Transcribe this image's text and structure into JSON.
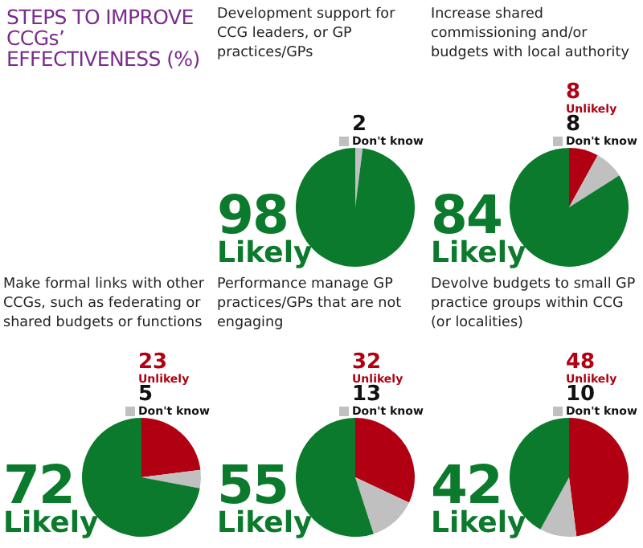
{
  "chart_data": [
    {
      "type": "other",
      "title": "STEPS TO IMPROVE CCGs’ EFFECTIVENESS (%)"
    },
    {
      "type": "pie",
      "title": "Development support for CCG leaders, or GP practices/GPs",
      "categories": [
        "Don't know",
        "Likely"
      ],
      "values": [
        2,
        98
      ],
      "colors": [
        "#c0c0c0",
        "#0b7a2c"
      ],
      "data_labels": true
    },
    {
      "type": "pie",
      "title": "Increase shared commissioning and/or budgets with local authority",
      "categories": [
        "Unlikely",
        "Don't know",
        "Likely"
      ],
      "values": [
        8,
        8,
        84
      ],
      "colors": [
        "#b00012",
        "#c0c0c0",
        "#0b7a2c"
      ],
      "data_labels": true
    },
    {
      "type": "pie",
      "title": "Make formal links with other CCGs, such as federating or shared budgets or functions",
      "categories": [
        "Unlikely",
        "Don't know",
        "Likely"
      ],
      "values": [
        23,
        5,
        72
      ],
      "colors": [
        "#b00012",
        "#c0c0c0",
        "#0b7a2c"
      ],
      "data_labels": true
    },
    {
      "type": "pie",
      "title": "Performance manage GP practices/GPs that are not engaging",
      "categories": [
        "Unlikely",
        "Don't know",
        "Likely"
      ],
      "values": [
        32,
        13,
        55
      ],
      "colors": [
        "#b00012",
        "#c0c0c0",
        "#0b7a2c"
      ],
      "data_labels": true
    },
    {
      "type": "pie",
      "title": "Devolve budgets to small GP practice groups within CCG (or localities)",
      "categories": [
        "Unlikely",
        "Don't know",
        "Likely"
      ],
      "values": [
        48,
        10,
        42
      ],
      "colors": [
        "#b00012",
        "#c0c0c0",
        "#0b7a2c"
      ],
      "data_labels": true
    }
  ]
}
